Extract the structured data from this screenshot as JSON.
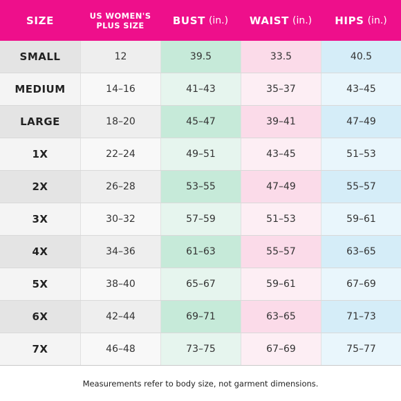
{
  "headers": {
    "size": "SIZE",
    "us_line1": "US WOMEN'S",
    "us_line2": "PLUS SIZE",
    "bust": "BUST",
    "bust_unit": "(in.)",
    "waist": "WAIST",
    "waist_unit": "(in.)",
    "hips": "HIPS",
    "hips_unit": "(in.)"
  },
  "rows": [
    {
      "size": "SMALL",
      "us": "12",
      "bust": "39.5",
      "waist": "33.5",
      "hips": "40.5"
    },
    {
      "size": "MEDIUM",
      "us": "14–16",
      "bust": "41–43",
      "waist": "35–37",
      "hips": "43–45"
    },
    {
      "size": "LARGE",
      "us": "18–20",
      "bust": "45–47",
      "waist": "39–41",
      "hips": "47–49"
    },
    {
      "size": "1X",
      "us": "22–24",
      "bust": "49–51",
      "waist": "43–45",
      "hips": "51–53"
    },
    {
      "size": "2X",
      "us": "26–28",
      "bust": "53–55",
      "waist": "47–49",
      "hips": "55–57"
    },
    {
      "size": "3X",
      "us": "30–32",
      "bust": "57–59",
      "waist": "51–53",
      "hips": "59–61"
    },
    {
      "size": "4X",
      "us": "34–36",
      "bust": "61–63",
      "waist": "55–57",
      "hips": "63–65"
    },
    {
      "size": "5X",
      "us": "38–40",
      "bust": "65–67",
      "waist": "59–61",
      "hips": "67–69"
    },
    {
      "size": "6X",
      "us": "42–44",
      "bust": "69–71",
      "waist": "63–65",
      "hips": "71–73"
    },
    {
      "size": "7X",
      "us": "46–48",
      "bust": "73–75",
      "waist": "67–69",
      "hips": "75–77"
    }
  ],
  "footnote": "Measurements refer to body size, not garment dimensions.",
  "colors": {
    "header": "#ee0f8b",
    "size_dark": "#e4e4e4",
    "size_light": "#f4f4f4",
    "us_dark": "#eeeeee",
    "us_light": "#f8f8f8",
    "bust_dark": "#c6ead9",
    "bust_light": "#e6f5ee",
    "waist_dark": "#fbdbe9",
    "waist_light": "#fdeef4",
    "hips_dark": "#d5edf8",
    "hips_light": "#e9f6fc"
  }
}
